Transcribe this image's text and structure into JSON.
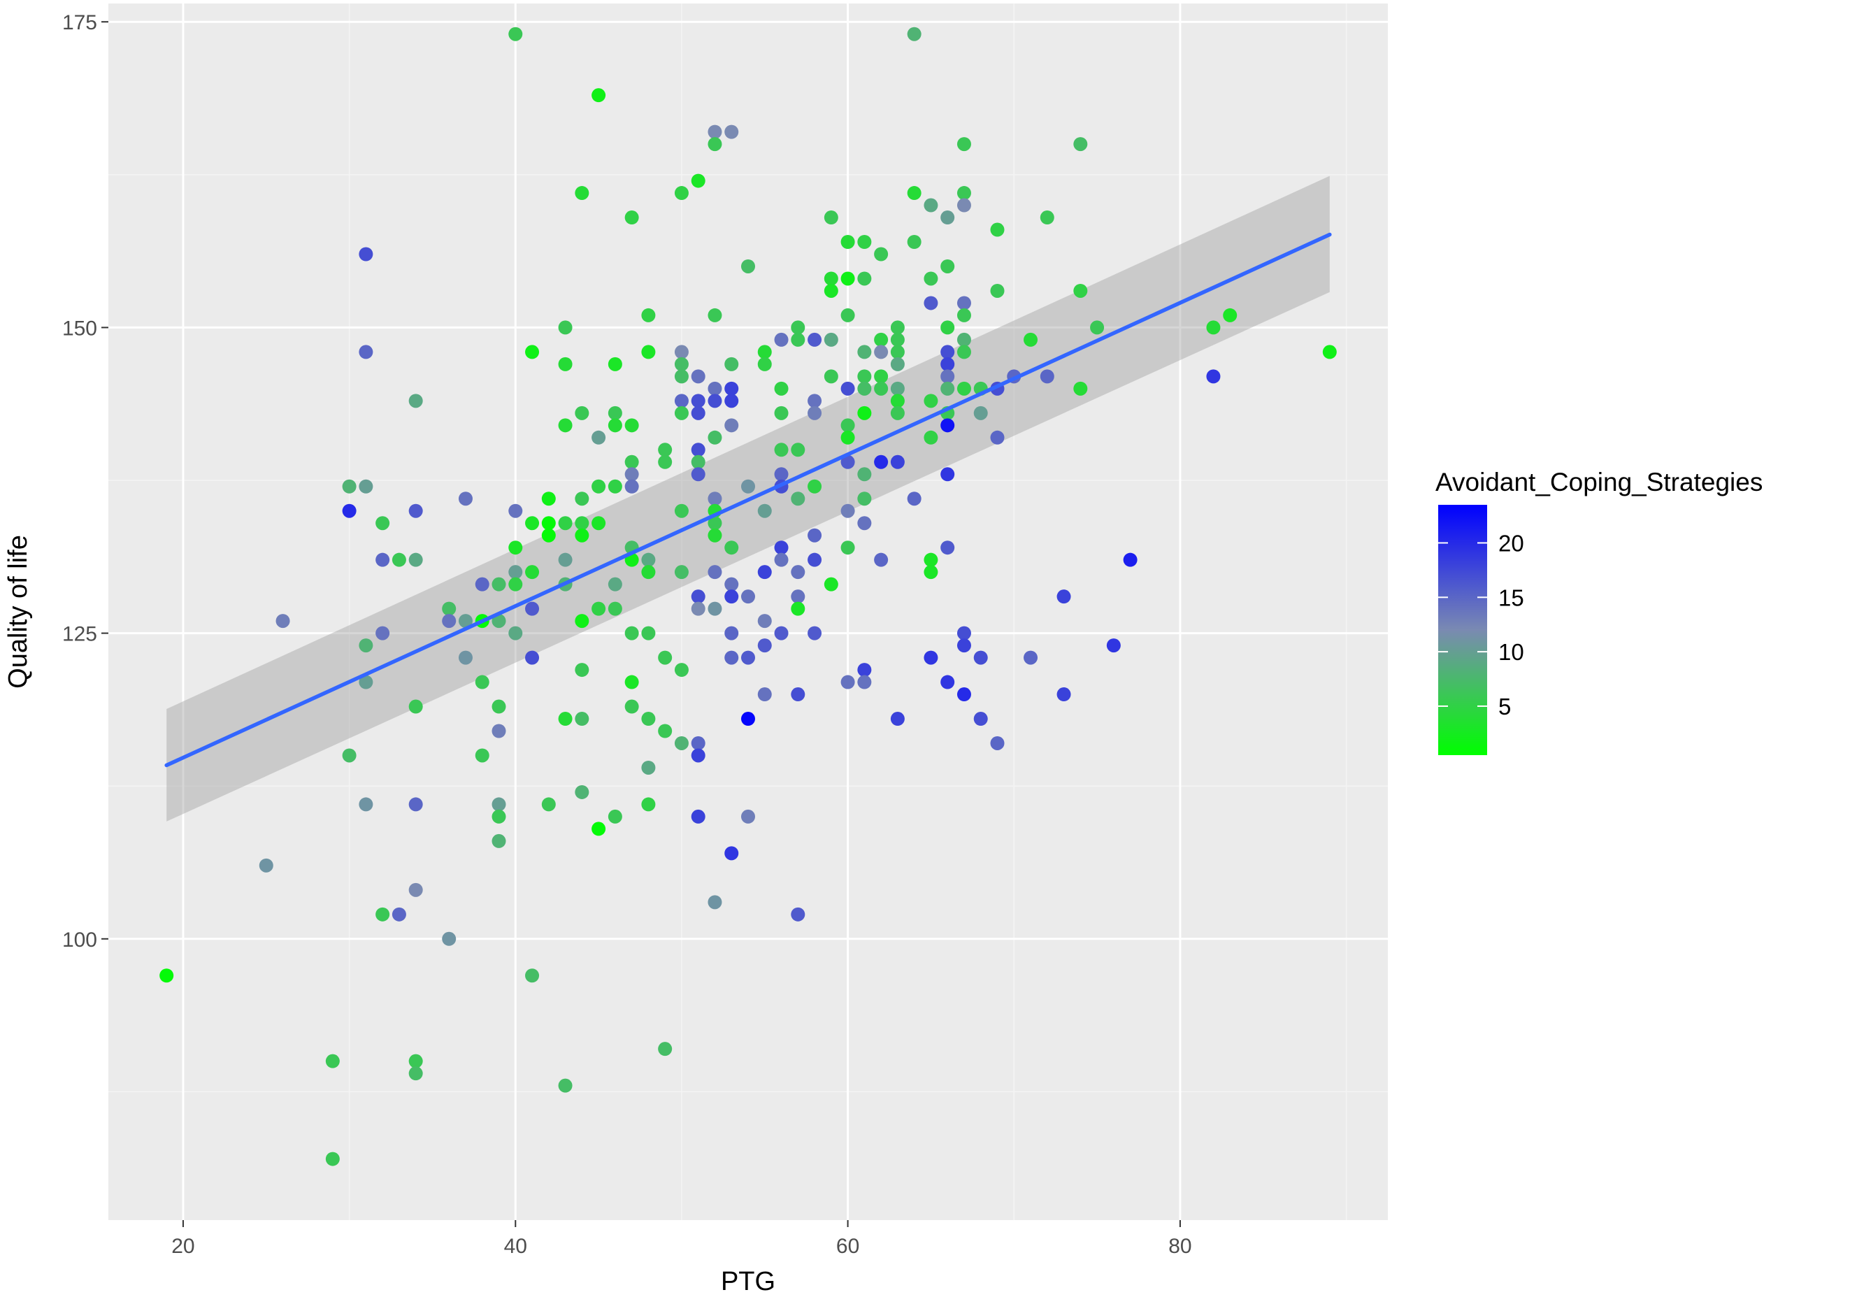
{
  "chart_data": {
    "type": "scatter",
    "xlabel": "PTG",
    "ylabel": "Quality of life",
    "xlim": [
      15.5,
      92.5
    ],
    "ylim": [
      77,
      176.5
    ],
    "x_ticks": [
      20,
      40,
      60,
      80
    ],
    "y_ticks": [
      100,
      125,
      150,
      175
    ],
    "grid": true,
    "legend": {
      "title": "Avoidant_Coping_Strategies",
      "placement": "right",
      "ticks": [
        5,
        10,
        15,
        20
      ],
      "min": 0.5,
      "max": 23.5,
      "color_low": "#00FF00",
      "color_mid": "#7A8AB2",
      "color_high": "#0000FF"
    },
    "colors": {
      "panel": "#EBEBEB",
      "grid_major": "#FFFFFF",
      "grid_minor": "#F4F4F4",
      "smooth_line": "#3366FF",
      "ribbon": "#999999"
    },
    "smooth": {
      "method": "linear",
      "x": [
        19,
        89
      ],
      "y": [
        114.2,
        157.6
      ],
      "ci_lower": [
        109.6,
        152.9
      ],
      "ci_upper": [
        118.8,
        162.4
      ]
    },
    "points": [
      [
        19,
        97,
        1
      ],
      [
        25,
        106,
        11
      ],
      [
        26,
        126,
        13
      ],
      [
        29,
        90,
        6
      ],
      [
        29,
        82,
        6
      ],
      [
        30,
        137,
        8
      ],
      [
        30,
        135,
        20
      ],
      [
        30,
        115,
        7
      ],
      [
        31,
        156,
        17
      ],
      [
        31,
        148,
        15
      ],
      [
        31,
        137,
        10
      ],
      [
        31,
        124,
        8
      ],
      [
        31,
        121,
        10
      ],
      [
        31,
        111,
        11
      ],
      [
        32,
        134,
        6
      ],
      [
        32,
        131,
        15
      ],
      [
        32,
        125,
        14
      ],
      [
        32,
        102,
        6
      ],
      [
        33,
        131,
        6
      ],
      [
        33,
        102,
        15
      ],
      [
        34,
        144,
        9
      ],
      [
        34,
        135,
        16
      ],
      [
        34,
        131,
        9
      ],
      [
        34,
        119,
        6
      ],
      [
        34,
        111,
        15
      ],
      [
        34,
        104,
        12
      ],
      [
        34,
        90,
        6
      ],
      [
        34,
        89,
        7
      ],
      [
        36,
        127,
        7
      ],
      [
        36,
        126,
        14
      ],
      [
        36,
        100,
        11
      ],
      [
        37,
        136,
        14
      ],
      [
        37,
        126,
        10
      ],
      [
        37,
        123,
        11
      ],
      [
        38,
        129,
        15
      ],
      [
        38,
        126,
        1
      ],
      [
        38,
        121,
        6
      ],
      [
        38,
        115,
        6
      ],
      [
        39,
        129,
        7
      ],
      [
        39,
        126,
        8
      ],
      [
        39,
        119,
        6
      ],
      [
        39,
        117,
        13
      ],
      [
        39,
        111,
        10
      ],
      [
        39,
        110,
        6
      ],
      [
        39,
        108,
        8
      ],
      [
        40,
        174,
        6
      ],
      [
        40,
        135,
        14
      ],
      [
        40,
        132,
        3
      ],
      [
        40,
        130,
        10
      ],
      [
        40,
        129,
        5
      ],
      [
        40,
        125,
        9
      ],
      [
        41,
        148,
        2
      ],
      [
        41,
        134,
        3
      ],
      [
        41,
        130,
        4
      ],
      [
        41,
        127,
        16
      ],
      [
        41,
        123,
        17
      ],
      [
        41,
        97,
        7
      ],
      [
        42,
        136,
        2
      ],
      [
        42,
        134,
        1
      ],
      [
        42,
        133,
        1
      ],
      [
        42,
        111,
        6
      ],
      [
        43,
        150,
        6
      ],
      [
        43,
        147,
        4
      ],
      [
        43,
        142,
        4
      ],
      [
        43,
        134,
        5
      ],
      [
        43,
        131,
        10
      ],
      [
        43,
        129,
        8
      ],
      [
        43,
        118,
        4
      ],
      [
        43,
        88,
        7
      ],
      [
        44,
        161,
        4
      ],
      [
        44,
        143,
        6
      ],
      [
        44,
        136,
        6
      ],
      [
        44,
        134,
        5
      ],
      [
        44,
        133,
        2
      ],
      [
        44,
        126,
        2
      ],
      [
        44,
        122,
        6
      ],
      [
        44,
        118,
        7
      ],
      [
        44,
        112,
        8
      ],
      [
        45,
        169,
        2
      ],
      [
        45,
        141,
        10
      ],
      [
        45,
        137,
        5
      ],
      [
        45,
        134,
        3
      ],
      [
        45,
        127,
        5
      ],
      [
        45,
        109,
        1
      ],
      [
        46,
        147,
        3
      ],
      [
        46,
        143,
        6
      ],
      [
        46,
        142,
        4
      ],
      [
        46,
        137,
        5
      ],
      [
        46,
        129,
        9
      ],
      [
        46,
        127,
        6
      ],
      [
        46,
        110,
        6
      ],
      [
        47,
        159,
        5
      ],
      [
        47,
        142,
        4
      ],
      [
        47,
        139,
        6
      ],
      [
        47,
        138,
        13
      ],
      [
        47,
        137,
        14
      ],
      [
        47,
        132,
        7
      ],
      [
        47,
        131,
        2
      ],
      [
        47,
        125,
        6
      ],
      [
        47,
        121,
        3
      ],
      [
        47,
        119,
        6
      ],
      [
        48,
        151,
        5
      ],
      [
        48,
        148,
        3
      ],
      [
        48,
        131,
        9
      ],
      [
        48,
        130,
        4
      ],
      [
        48,
        125,
        6
      ],
      [
        48,
        118,
        6
      ],
      [
        48,
        114,
        9
      ],
      [
        48,
        111,
        5
      ],
      [
        49,
        140,
        6
      ],
      [
        49,
        139,
        6
      ],
      [
        49,
        123,
        6
      ],
      [
        49,
        117,
        6
      ],
      [
        49,
        91,
        7
      ],
      [
        50,
        161,
        5
      ],
      [
        50,
        148,
        12
      ],
      [
        50,
        147,
        7
      ],
      [
        50,
        146,
        7
      ],
      [
        50,
        144,
        15
      ],
      [
        50,
        143,
        6
      ],
      [
        50,
        135,
        6
      ],
      [
        50,
        130,
        7
      ],
      [
        50,
        122,
        6
      ],
      [
        50,
        116,
        8
      ],
      [
        51,
        162,
        3
      ],
      [
        51,
        146,
        14
      ],
      [
        51,
        144,
        17
      ],
      [
        51,
        143,
        17
      ],
      [
        51,
        140,
        17
      ],
      [
        51,
        139,
        7
      ],
      [
        51,
        138,
        16
      ],
      [
        51,
        128,
        17
      ],
      [
        51,
        127,
        12
      ],
      [
        51,
        116,
        15
      ],
      [
        51,
        115,
        18
      ],
      [
        51,
        110,
        18
      ],
      [
        52,
        166,
        12
      ],
      [
        52,
        165,
        6
      ],
      [
        52,
        151,
        6
      ],
      [
        52,
        145,
        14
      ],
      [
        52,
        144,
        17
      ],
      [
        52,
        141,
        7
      ],
      [
        52,
        136,
        13
      ],
      [
        52,
        135,
        4
      ],
      [
        52,
        134,
        6
      ],
      [
        52,
        133,
        4
      ],
      [
        52,
        130,
        14
      ],
      [
        52,
        127,
        11
      ],
      [
        52,
        103,
        11
      ],
      [
        53,
        166,
        12
      ],
      [
        53,
        147,
        7
      ],
      [
        53,
        145,
        18
      ],
      [
        53,
        144,
        18
      ],
      [
        53,
        142,
        13
      ],
      [
        53,
        132,
        6
      ],
      [
        53,
        129,
        14
      ],
      [
        53,
        128,
        18
      ],
      [
        53,
        125,
        15
      ],
      [
        53,
        123,
        15
      ],
      [
        53,
        107,
        19
      ],
      [
        54,
        155,
        7
      ],
      [
        54,
        137,
        11
      ],
      [
        54,
        128,
        14
      ],
      [
        54,
        123,
        16
      ],
      [
        54,
        118,
        23
      ],
      [
        54,
        110,
        13
      ],
      [
        55,
        148,
        4
      ],
      [
        55,
        147,
        5
      ],
      [
        55,
        135,
        10
      ],
      [
        55,
        130,
        18
      ],
      [
        55,
        126,
        13
      ],
      [
        55,
        124,
        16
      ],
      [
        55,
        120,
        14
      ],
      [
        56,
        149,
        14
      ],
      [
        56,
        145,
        5
      ],
      [
        56,
        143,
        6
      ],
      [
        56,
        140,
        6
      ],
      [
        56,
        138,
        15
      ],
      [
        56,
        137,
        17
      ],
      [
        56,
        132,
        18
      ],
      [
        56,
        131,
        14
      ],
      [
        56,
        125,
        16
      ],
      [
        57,
        150,
        6
      ],
      [
        57,
        149,
        6
      ],
      [
        57,
        140,
        6
      ],
      [
        57,
        136,
        8
      ],
      [
        57,
        130,
        14
      ],
      [
        57,
        128,
        14
      ],
      [
        57,
        127,
        3
      ],
      [
        57,
        120,
        17
      ],
      [
        57,
        102,
        16
      ],
      [
        58,
        149,
        16
      ],
      [
        58,
        144,
        14
      ],
      [
        58,
        143,
        13
      ],
      [
        58,
        137,
        5
      ],
      [
        58,
        133,
        15
      ],
      [
        58,
        131,
        17
      ],
      [
        58,
        125,
        16
      ],
      [
        59,
        159,
        6
      ],
      [
        59,
        154,
        4
      ],
      [
        59,
        153,
        3
      ],
      [
        59,
        149,
        9
      ],
      [
        59,
        146,
        6
      ],
      [
        59,
        129,
        3
      ],
      [
        60,
        157,
        4
      ],
      [
        60,
        154,
        2
      ],
      [
        60,
        151,
        6
      ],
      [
        60,
        145,
        17
      ],
      [
        60,
        142,
        6
      ],
      [
        60,
        141,
        3
      ],
      [
        60,
        139,
        16
      ],
      [
        60,
        135,
        13
      ],
      [
        60,
        132,
        6
      ],
      [
        60,
        121,
        14
      ],
      [
        61,
        157,
        5
      ],
      [
        61,
        154,
        6
      ],
      [
        61,
        148,
        8
      ],
      [
        61,
        146,
        6
      ],
      [
        61,
        145,
        7
      ],
      [
        61,
        143,
        2
      ],
      [
        61,
        138,
        8
      ],
      [
        61,
        136,
        7
      ],
      [
        61,
        134,
        14
      ],
      [
        61,
        122,
        18
      ],
      [
        61,
        121,
        14
      ],
      [
        62,
        156,
        6
      ],
      [
        62,
        149,
        5
      ],
      [
        62,
        148,
        12
      ],
      [
        62,
        146,
        5
      ],
      [
        62,
        145,
        6
      ],
      [
        62,
        139,
        20
      ],
      [
        62,
        131,
        15
      ],
      [
        63,
        150,
        6
      ],
      [
        63,
        149,
        6
      ],
      [
        63,
        148,
        6
      ],
      [
        63,
        147,
        9
      ],
      [
        63,
        145,
        9
      ],
      [
        63,
        144,
        4
      ],
      [
        63,
        143,
        6
      ],
      [
        63,
        139,
        18
      ],
      [
        63,
        118,
        18
      ],
      [
        64,
        174,
        8
      ],
      [
        64,
        161,
        4
      ],
      [
        64,
        157,
        6
      ],
      [
        64,
        136,
        15
      ],
      [
        65,
        160,
        9
      ],
      [
        65,
        154,
        6
      ],
      [
        65,
        152,
        16
      ],
      [
        65,
        144,
        5
      ],
      [
        65,
        141,
        5
      ],
      [
        65,
        131,
        3
      ],
      [
        65,
        130,
        3
      ],
      [
        65,
        123,
        19
      ],
      [
        66,
        159,
        10
      ],
      [
        66,
        155,
        6
      ],
      [
        66,
        150,
        5
      ],
      [
        66,
        148,
        17
      ],
      [
        66,
        147,
        18
      ],
      [
        66,
        146,
        14
      ],
      [
        66,
        145,
        8
      ],
      [
        66,
        143,
        6
      ],
      [
        66,
        142,
        22
      ],
      [
        66,
        138,
        19
      ],
      [
        66,
        132,
        16
      ],
      [
        66,
        121,
        19
      ],
      [
        67,
        165,
        6
      ],
      [
        67,
        161,
        6
      ],
      [
        67,
        160,
        12
      ],
      [
        67,
        152,
        14
      ],
      [
        67,
        151,
        6
      ],
      [
        67,
        149,
        8
      ],
      [
        67,
        148,
        6
      ],
      [
        67,
        145,
        5
      ],
      [
        67,
        125,
        17
      ],
      [
        67,
        124,
        18
      ],
      [
        67,
        120,
        20
      ],
      [
        68,
        145,
        6
      ],
      [
        68,
        143,
        10
      ],
      [
        68,
        123,
        17
      ],
      [
        68,
        118,
        17
      ],
      [
        69,
        158,
        5
      ],
      [
        69,
        153,
        6
      ],
      [
        69,
        145,
        17
      ],
      [
        69,
        141,
        15
      ],
      [
        69,
        116,
        15
      ],
      [
        70,
        146,
        15
      ],
      [
        71,
        149,
        4
      ],
      [
        71,
        123,
        15
      ],
      [
        72,
        159,
        6
      ],
      [
        72,
        146,
        15
      ],
      [
        73,
        128,
        18
      ],
      [
        73,
        120,
        18
      ],
      [
        74,
        165,
        7
      ],
      [
        74,
        153,
        5
      ],
      [
        74,
        145,
        4
      ],
      [
        75,
        150,
        6
      ],
      [
        76,
        124,
        19
      ],
      [
        77,
        131,
        21
      ],
      [
        82,
        150,
        4
      ],
      [
        82,
        146,
        19
      ],
      [
        83,
        151,
        3
      ],
      [
        89,
        148,
        2
      ]
    ]
  }
}
